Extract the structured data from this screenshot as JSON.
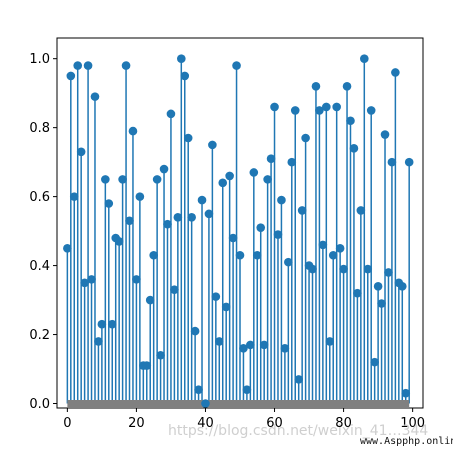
{
  "chart_data": {
    "type": "stem",
    "title": "",
    "xlabel": "",
    "ylabel": "",
    "xlim": [
      -3,
      103
    ],
    "ylim": [
      -0.013,
      1.06
    ],
    "xticks": [
      0,
      20,
      40,
      60,
      80,
      100
    ],
    "yticks": [
      0.0,
      0.2,
      0.4,
      0.6,
      0.8,
      1.0
    ],
    "x": [
      0,
      1,
      2,
      3,
      4,
      5,
      6,
      7,
      8,
      9,
      10,
      11,
      12,
      13,
      14,
      15,
      16,
      17,
      18,
      19,
      20,
      21,
      22,
      23,
      24,
      25,
      26,
      27,
      28,
      29,
      30,
      31,
      32,
      33,
      34,
      35,
      36,
      37,
      38,
      39,
      40,
      41,
      42,
      43,
      44,
      45,
      46,
      47,
      48,
      49,
      50,
      51,
      52,
      53,
      54,
      55,
      56,
      57,
      58,
      59,
      60,
      61,
      62,
      63,
      64,
      65,
      66,
      67,
      68,
      69,
      70,
      71,
      72,
      73,
      74,
      75,
      76,
      77,
      78,
      79,
      80,
      81,
      82,
      83,
      84,
      85,
      86,
      87,
      88,
      89,
      90,
      91,
      92,
      93,
      94,
      95,
      96,
      97,
      98,
      99
    ],
    "values": [
      0.45,
      0.95,
      0.6,
      0.98,
      0.73,
      0.35,
      0.98,
      0.36,
      0.89,
      0.18,
      0.23,
      0.65,
      0.58,
      0.23,
      0.48,
      0.47,
      0.65,
      0.98,
      0.53,
      0.79,
      0.36,
      0.6,
      0.11,
      0.11,
      0.3,
      0.43,
      0.65,
      0.14,
      0.68,
      0.52,
      0.84,
      0.33,
      0.54,
      1.0,
      0.95,
      0.77,
      0.54,
      0.21,
      0.04,
      0.59,
      0.0,
      0.55,
      0.75,
      0.31,
      0.18,
      0.64,
      0.28,
      0.66,
      0.48,
      0.98,
      0.43,
      0.16,
      0.04,
      0.17,
      0.67,
      0.43,
      0.51,
      0.17,
      0.65,
      0.71,
      0.86,
      0.49,
      0.59,
      0.16,
      0.41,
      0.7,
      0.85,
      0.07,
      0.56,
      0.77,
      0.4,
      0.39,
      0.92,
      0.85,
      0.46,
      0.86,
      0.18,
      0.43,
      0.86,
      0.45,
      0.39,
      0.92,
      0.82,
      0.74,
      0.32,
      0.56,
      1.0,
      0.39,
      0.85,
      0.12,
      0.34,
      0.29,
      0.78,
      0.38,
      0.7,
      0.96,
      0.35,
      0.34,
      0.03,
      0.7
    ],
    "colors": {
      "stem": "#1f77b4",
      "marker": "#1f77b4",
      "baseline": "#808080"
    },
    "baseline": 0.0
  },
  "overlay": {
    "watermark": "https://blog.csdn.net/weixin_41…344",
    "credit": "www.Aspphp.online"
  }
}
